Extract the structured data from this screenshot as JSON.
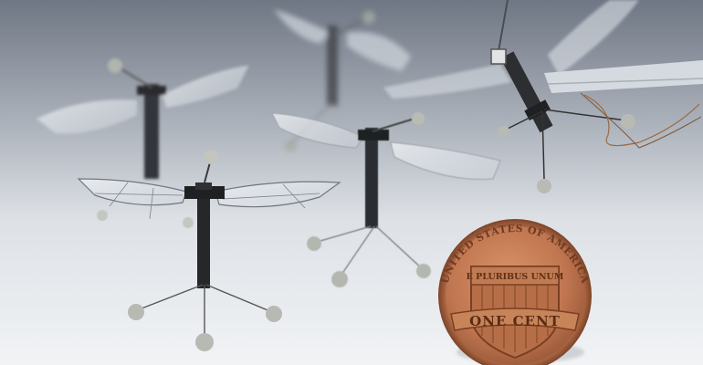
{
  "coin": {
    "top_text": "UNITED STATES OF AMERICA",
    "motto": "E PLURIBUS UNUM",
    "denomination": "ONE CENT",
    "rim_color": "#b06a3f",
    "face_color": "#c98258"
  },
  "colors": {
    "backdrop_top": "#7f8794",
    "backdrop_mid": "#c9ced6",
    "floor": "#eef0f3",
    "robot_body": "#2b2d30",
    "wing": "#dfe4ea",
    "foot": "#b9bcb7"
  }
}
